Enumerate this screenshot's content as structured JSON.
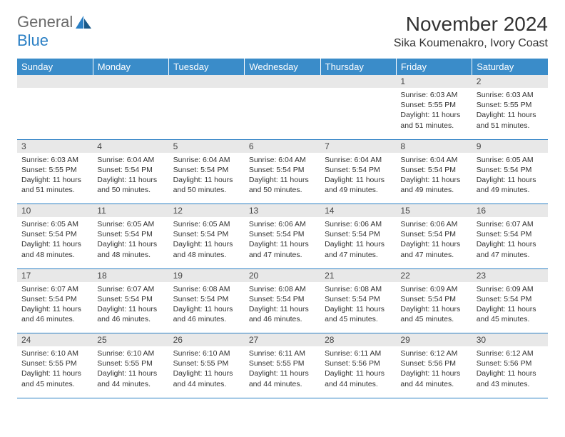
{
  "logo": {
    "text1": "General",
    "text2": "Blue"
  },
  "title": "November 2024",
  "location": "Sika Koumenakro, Ivory Coast",
  "colors": {
    "header_bg": "#3a8cc9",
    "header_text": "#ffffff",
    "daynum_bg": "#e8e8e8",
    "border": "#2a7fc4",
    "body_text": "#333333",
    "logo_gray": "#6a6a6a",
    "logo_blue": "#2a7fc4"
  },
  "weekdays": [
    "Sunday",
    "Monday",
    "Tuesday",
    "Wednesday",
    "Thursday",
    "Friday",
    "Saturday"
  ],
  "weeks": [
    {
      "nums": [
        "",
        "",
        "",
        "",
        "",
        "1",
        "2"
      ],
      "cells": [
        {},
        {},
        {},
        {},
        {},
        {
          "sunrise": "Sunrise: 6:03 AM",
          "sunset": "Sunset: 5:55 PM",
          "day1": "Daylight: 11 hours",
          "day2": "and 51 minutes."
        },
        {
          "sunrise": "Sunrise: 6:03 AM",
          "sunset": "Sunset: 5:55 PM",
          "day1": "Daylight: 11 hours",
          "day2": "and 51 minutes."
        }
      ]
    },
    {
      "nums": [
        "3",
        "4",
        "5",
        "6",
        "7",
        "8",
        "9"
      ],
      "cells": [
        {
          "sunrise": "Sunrise: 6:03 AM",
          "sunset": "Sunset: 5:55 PM",
          "day1": "Daylight: 11 hours",
          "day2": "and 51 minutes."
        },
        {
          "sunrise": "Sunrise: 6:04 AM",
          "sunset": "Sunset: 5:54 PM",
          "day1": "Daylight: 11 hours",
          "day2": "and 50 minutes."
        },
        {
          "sunrise": "Sunrise: 6:04 AM",
          "sunset": "Sunset: 5:54 PM",
          "day1": "Daylight: 11 hours",
          "day2": "and 50 minutes."
        },
        {
          "sunrise": "Sunrise: 6:04 AM",
          "sunset": "Sunset: 5:54 PM",
          "day1": "Daylight: 11 hours",
          "day2": "and 50 minutes."
        },
        {
          "sunrise": "Sunrise: 6:04 AM",
          "sunset": "Sunset: 5:54 PM",
          "day1": "Daylight: 11 hours",
          "day2": "and 49 minutes."
        },
        {
          "sunrise": "Sunrise: 6:04 AM",
          "sunset": "Sunset: 5:54 PM",
          "day1": "Daylight: 11 hours",
          "day2": "and 49 minutes."
        },
        {
          "sunrise": "Sunrise: 6:05 AM",
          "sunset": "Sunset: 5:54 PM",
          "day1": "Daylight: 11 hours",
          "day2": "and 49 minutes."
        }
      ]
    },
    {
      "nums": [
        "10",
        "11",
        "12",
        "13",
        "14",
        "15",
        "16"
      ],
      "cells": [
        {
          "sunrise": "Sunrise: 6:05 AM",
          "sunset": "Sunset: 5:54 PM",
          "day1": "Daylight: 11 hours",
          "day2": "and 48 minutes."
        },
        {
          "sunrise": "Sunrise: 6:05 AM",
          "sunset": "Sunset: 5:54 PM",
          "day1": "Daylight: 11 hours",
          "day2": "and 48 minutes."
        },
        {
          "sunrise": "Sunrise: 6:05 AM",
          "sunset": "Sunset: 5:54 PM",
          "day1": "Daylight: 11 hours",
          "day2": "and 48 minutes."
        },
        {
          "sunrise": "Sunrise: 6:06 AM",
          "sunset": "Sunset: 5:54 PM",
          "day1": "Daylight: 11 hours",
          "day2": "and 47 minutes."
        },
        {
          "sunrise": "Sunrise: 6:06 AM",
          "sunset": "Sunset: 5:54 PM",
          "day1": "Daylight: 11 hours",
          "day2": "and 47 minutes."
        },
        {
          "sunrise": "Sunrise: 6:06 AM",
          "sunset": "Sunset: 5:54 PM",
          "day1": "Daylight: 11 hours",
          "day2": "and 47 minutes."
        },
        {
          "sunrise": "Sunrise: 6:07 AM",
          "sunset": "Sunset: 5:54 PM",
          "day1": "Daylight: 11 hours",
          "day2": "and 47 minutes."
        }
      ]
    },
    {
      "nums": [
        "17",
        "18",
        "19",
        "20",
        "21",
        "22",
        "23"
      ],
      "cells": [
        {
          "sunrise": "Sunrise: 6:07 AM",
          "sunset": "Sunset: 5:54 PM",
          "day1": "Daylight: 11 hours",
          "day2": "and 46 minutes."
        },
        {
          "sunrise": "Sunrise: 6:07 AM",
          "sunset": "Sunset: 5:54 PM",
          "day1": "Daylight: 11 hours",
          "day2": "and 46 minutes."
        },
        {
          "sunrise": "Sunrise: 6:08 AM",
          "sunset": "Sunset: 5:54 PM",
          "day1": "Daylight: 11 hours",
          "day2": "and 46 minutes."
        },
        {
          "sunrise": "Sunrise: 6:08 AM",
          "sunset": "Sunset: 5:54 PM",
          "day1": "Daylight: 11 hours",
          "day2": "and 46 minutes."
        },
        {
          "sunrise": "Sunrise: 6:08 AM",
          "sunset": "Sunset: 5:54 PM",
          "day1": "Daylight: 11 hours",
          "day2": "and 45 minutes."
        },
        {
          "sunrise": "Sunrise: 6:09 AM",
          "sunset": "Sunset: 5:54 PM",
          "day1": "Daylight: 11 hours",
          "day2": "and 45 minutes."
        },
        {
          "sunrise": "Sunrise: 6:09 AM",
          "sunset": "Sunset: 5:54 PM",
          "day1": "Daylight: 11 hours",
          "day2": "and 45 minutes."
        }
      ]
    },
    {
      "nums": [
        "24",
        "25",
        "26",
        "27",
        "28",
        "29",
        "30"
      ],
      "cells": [
        {
          "sunrise": "Sunrise: 6:10 AM",
          "sunset": "Sunset: 5:55 PM",
          "day1": "Daylight: 11 hours",
          "day2": "and 45 minutes."
        },
        {
          "sunrise": "Sunrise: 6:10 AM",
          "sunset": "Sunset: 5:55 PM",
          "day1": "Daylight: 11 hours",
          "day2": "and 44 minutes."
        },
        {
          "sunrise": "Sunrise: 6:10 AM",
          "sunset": "Sunset: 5:55 PM",
          "day1": "Daylight: 11 hours",
          "day2": "and 44 minutes."
        },
        {
          "sunrise": "Sunrise: 6:11 AM",
          "sunset": "Sunset: 5:55 PM",
          "day1": "Daylight: 11 hours",
          "day2": "and 44 minutes."
        },
        {
          "sunrise": "Sunrise: 6:11 AM",
          "sunset": "Sunset: 5:56 PM",
          "day1": "Daylight: 11 hours",
          "day2": "and 44 minutes."
        },
        {
          "sunrise": "Sunrise: 6:12 AM",
          "sunset": "Sunset: 5:56 PM",
          "day1": "Daylight: 11 hours",
          "day2": "and 44 minutes."
        },
        {
          "sunrise": "Sunrise: 6:12 AM",
          "sunset": "Sunset: 5:56 PM",
          "day1": "Daylight: 11 hours",
          "day2": "and 43 minutes."
        }
      ]
    }
  ]
}
